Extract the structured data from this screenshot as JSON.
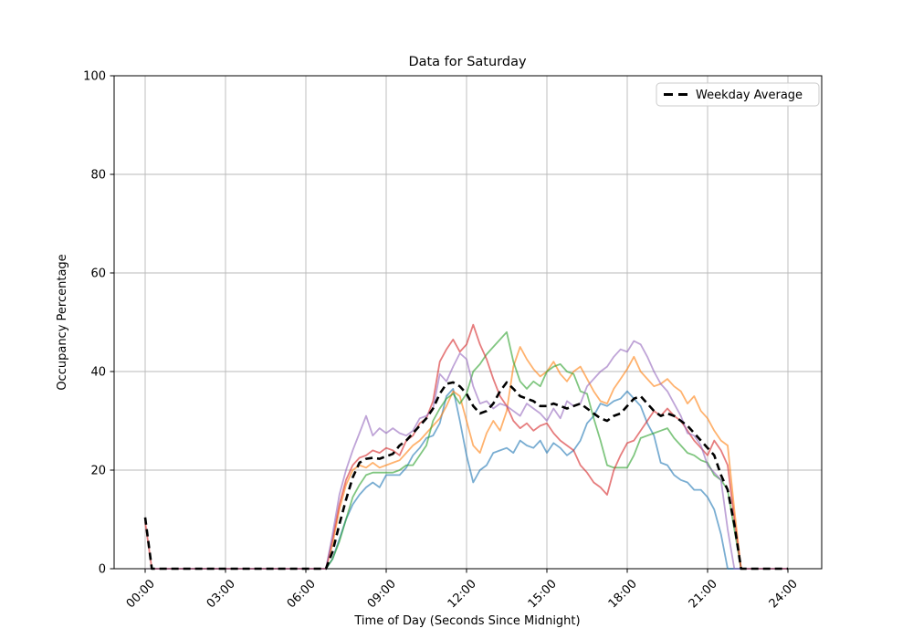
{
  "window": {
    "title": "Data for Saturday"
  },
  "chart_data": {
    "type": "line",
    "title": "Data for Saturday",
    "xlabel": "Time of Day (Seconds Since Midnight)",
    "ylabel": "Occupancy Percentage",
    "ylim": [
      0,
      100
    ],
    "xlim_hours": [
      0,
      24
    ],
    "grid": true,
    "grid_color": "#b8b8b8",
    "legend": {
      "position": "upper right",
      "entries": [
        "Weekday Average"
      ]
    },
    "yticks": [
      0,
      20,
      40,
      60,
      80,
      100
    ],
    "xticks": {
      "hours": [
        0,
        3,
        6,
        9,
        12,
        15,
        18,
        21,
        24
      ],
      "labels": [
        "00:00",
        "03:00",
        "06:00",
        "09:00",
        "12:00",
        "15:00",
        "18:00",
        "21:00",
        "24:00"
      ]
    },
    "x_hours": [
      0,
      0.25,
      6.75,
      7,
      7.25,
      7.5,
      7.75,
      8,
      8.25,
      8.5,
      8.75,
      9,
      9.25,
      9.5,
      9.75,
      10,
      10.25,
      10.5,
      10.75,
      11,
      11.25,
      11.5,
      11.75,
      12,
      12.25,
      12.5,
      12.75,
      13,
      13.25,
      13.5,
      13.75,
      14,
      14.25,
      14.5,
      14.75,
      15,
      15.25,
      15.5,
      15.75,
      16,
      16.25,
      16.5,
      16.75,
      17,
      17.25,
      17.5,
      17.75,
      18,
      18.25,
      18.5,
      18.75,
      19,
      19.25,
      19.5,
      19.75,
      20,
      20.25,
      20.5,
      20.75,
      21,
      21.25,
      21.5,
      21.75,
      22,
      22.25,
      22.5,
      24
    ],
    "series": [
      {
        "name": "saturday-week-1",
        "color": "#1f77b4",
        "alpha": 0.6,
        "width": 1.8,
        "dash": null,
        "in_legend": false,
        "values": [
          0,
          0,
          0,
          2,
          6,
          10,
          13,
          15,
          16.5,
          17.5,
          16.5,
          19,
          19,
          19,
          20.5,
          23,
          24.5,
          26.5,
          27,
          29.5,
          35,
          36.5,
          30,
          23,
          17.5,
          20,
          21,
          23.5,
          24,
          24.5,
          23.5,
          26,
          25,
          24.5,
          26,
          23.5,
          25.5,
          24.5,
          23,
          24,
          26,
          29.5,
          31,
          33.5,
          33,
          34,
          34.5,
          36,
          34.5,
          33,
          29.5,
          27,
          21.5,
          21,
          19,
          18,
          17.5,
          16,
          16,
          14.5,
          12,
          7,
          0,
          0,
          0,
          0,
          0
        ]
      },
      {
        "name": "saturday-week-2",
        "color": "#ff7f0e",
        "alpha": 0.6,
        "width": 1.8,
        "dash": null,
        "in_legend": false,
        "values": [
          0,
          0,
          0,
          5,
          12,
          17,
          20,
          21,
          20.5,
          21.5,
          20.5,
          21,
          21.5,
          22,
          23.5,
          25,
          26,
          27.5,
          29,
          30.5,
          33,
          36,
          35,
          30,
          25,
          23.5,
          27.5,
          30,
          28,
          32,
          41,
          45,
          42.5,
          40.5,
          39,
          40,
          42,
          39.5,
          38,
          40,
          41,
          38.5,
          36,
          34,
          33.5,
          36.5,
          38.5,
          40.5,
          43,
          40,
          38.5,
          37,
          37.5,
          38.5,
          37,
          36,
          33.5,
          35,
          32,
          30.5,
          28,
          26,
          25,
          12,
          0,
          0,
          0
        ]
      },
      {
        "name": "saturday-week-3",
        "color": "#2ca02c",
        "alpha": 0.6,
        "width": 1.8,
        "dash": null,
        "in_legend": false,
        "values": [
          0,
          0,
          0,
          2,
          5.5,
          10,
          14.5,
          17,
          19,
          19.5,
          19.5,
          19.5,
          19.5,
          20,
          21,
          21,
          23,
          25,
          30,
          32.5,
          34.5,
          35.5,
          33.5,
          35.5,
          40,
          41.5,
          43.5,
          45,
          46.5,
          48,
          42,
          38,
          36.5,
          38,
          37,
          40,
          41,
          41.5,
          40,
          39.5,
          36,
          35.5,
          30.5,
          26,
          21,
          20.5,
          20.5,
          20.5,
          23,
          26.5,
          27,
          27.5,
          28,
          28.5,
          26.5,
          25,
          23.5,
          23,
          22,
          21.5,
          19,
          18,
          16,
          8,
          0,
          0,
          0
        ]
      },
      {
        "name": "saturday-week-4",
        "color": "#d62728",
        "alpha": 0.6,
        "width": 1.8,
        "dash": null,
        "in_legend": false,
        "values": [
          9.5,
          0,
          0,
          6,
          13,
          18,
          21,
          22.5,
          23,
          24,
          23.5,
          24.5,
          24,
          23,
          26,
          27,
          29.5,
          30.5,
          34,
          42,
          44.5,
          46.5,
          44,
          45.5,
          49.5,
          45.5,
          42.5,
          38.5,
          35,
          33,
          30,
          28.5,
          29.5,
          28,
          29,
          29.5,
          27.5,
          26,
          25,
          24,
          21,
          19.5,
          17.5,
          16.5,
          15,
          20,
          23,
          25.5,
          26,
          28,
          30,
          32,
          31,
          32.5,
          31,
          30,
          28,
          26,
          24.5,
          23,
          26,
          24,
          21,
          10,
          0,
          0,
          0
        ]
      },
      {
        "name": "saturday-week-5",
        "color": "#9467bd",
        "alpha": 0.6,
        "width": 1.8,
        "dash": null,
        "in_legend": false,
        "values": [
          0,
          0,
          0,
          7,
          15,
          20,
          24,
          27.5,
          31,
          27,
          28.5,
          27.5,
          28.5,
          27.5,
          27,
          28,
          30.5,
          31,
          32.5,
          39.5,
          38,
          41,
          43.7,
          42.5,
          37,
          33.5,
          34,
          32.5,
          33.5,
          33,
          32,
          31,
          33.5,
          32.5,
          31.5,
          30,
          32.5,
          30.5,
          34,
          33,
          33.5,
          37,
          38.5,
          40,
          41,
          43,
          44.5,
          44,
          46.2,
          45.5,
          43,
          40,
          37.5,
          36,
          33.5,
          31,
          27.5,
          27,
          25,
          21,
          19.5,
          18,
          8,
          0,
          0,
          0,
          0
        ]
      },
      {
        "name": "weekday-average",
        "label": "Weekday Average",
        "color": "#000000",
        "alpha": 1,
        "width": 2.6,
        "dash": [
          8,
          5
        ],
        "in_legend": true,
        "values": [
          10.4,
          0,
          0,
          3.5,
          9,
          14,
          18.5,
          21.5,
          22.3,
          22.5,
          22.3,
          22.8,
          23.3,
          25,
          26,
          27.5,
          29,
          30.5,
          32.5,
          35.5,
          37.5,
          37.8,
          37,
          35.5,
          33,
          31.5,
          32,
          33.5,
          36,
          37.8,
          36.5,
          35,
          34.5,
          34,
          33,
          33,
          33.5,
          33,
          32.5,
          33,
          33.5,
          32.5,
          31.5,
          30.5,
          30,
          31,
          31.5,
          33,
          34.5,
          35,
          33.5,
          32,
          31,
          31.5,
          31,
          30,
          29,
          27.5,
          26,
          24.5,
          23,
          19,
          16,
          9,
          0,
          0,
          0
        ]
      }
    ]
  }
}
